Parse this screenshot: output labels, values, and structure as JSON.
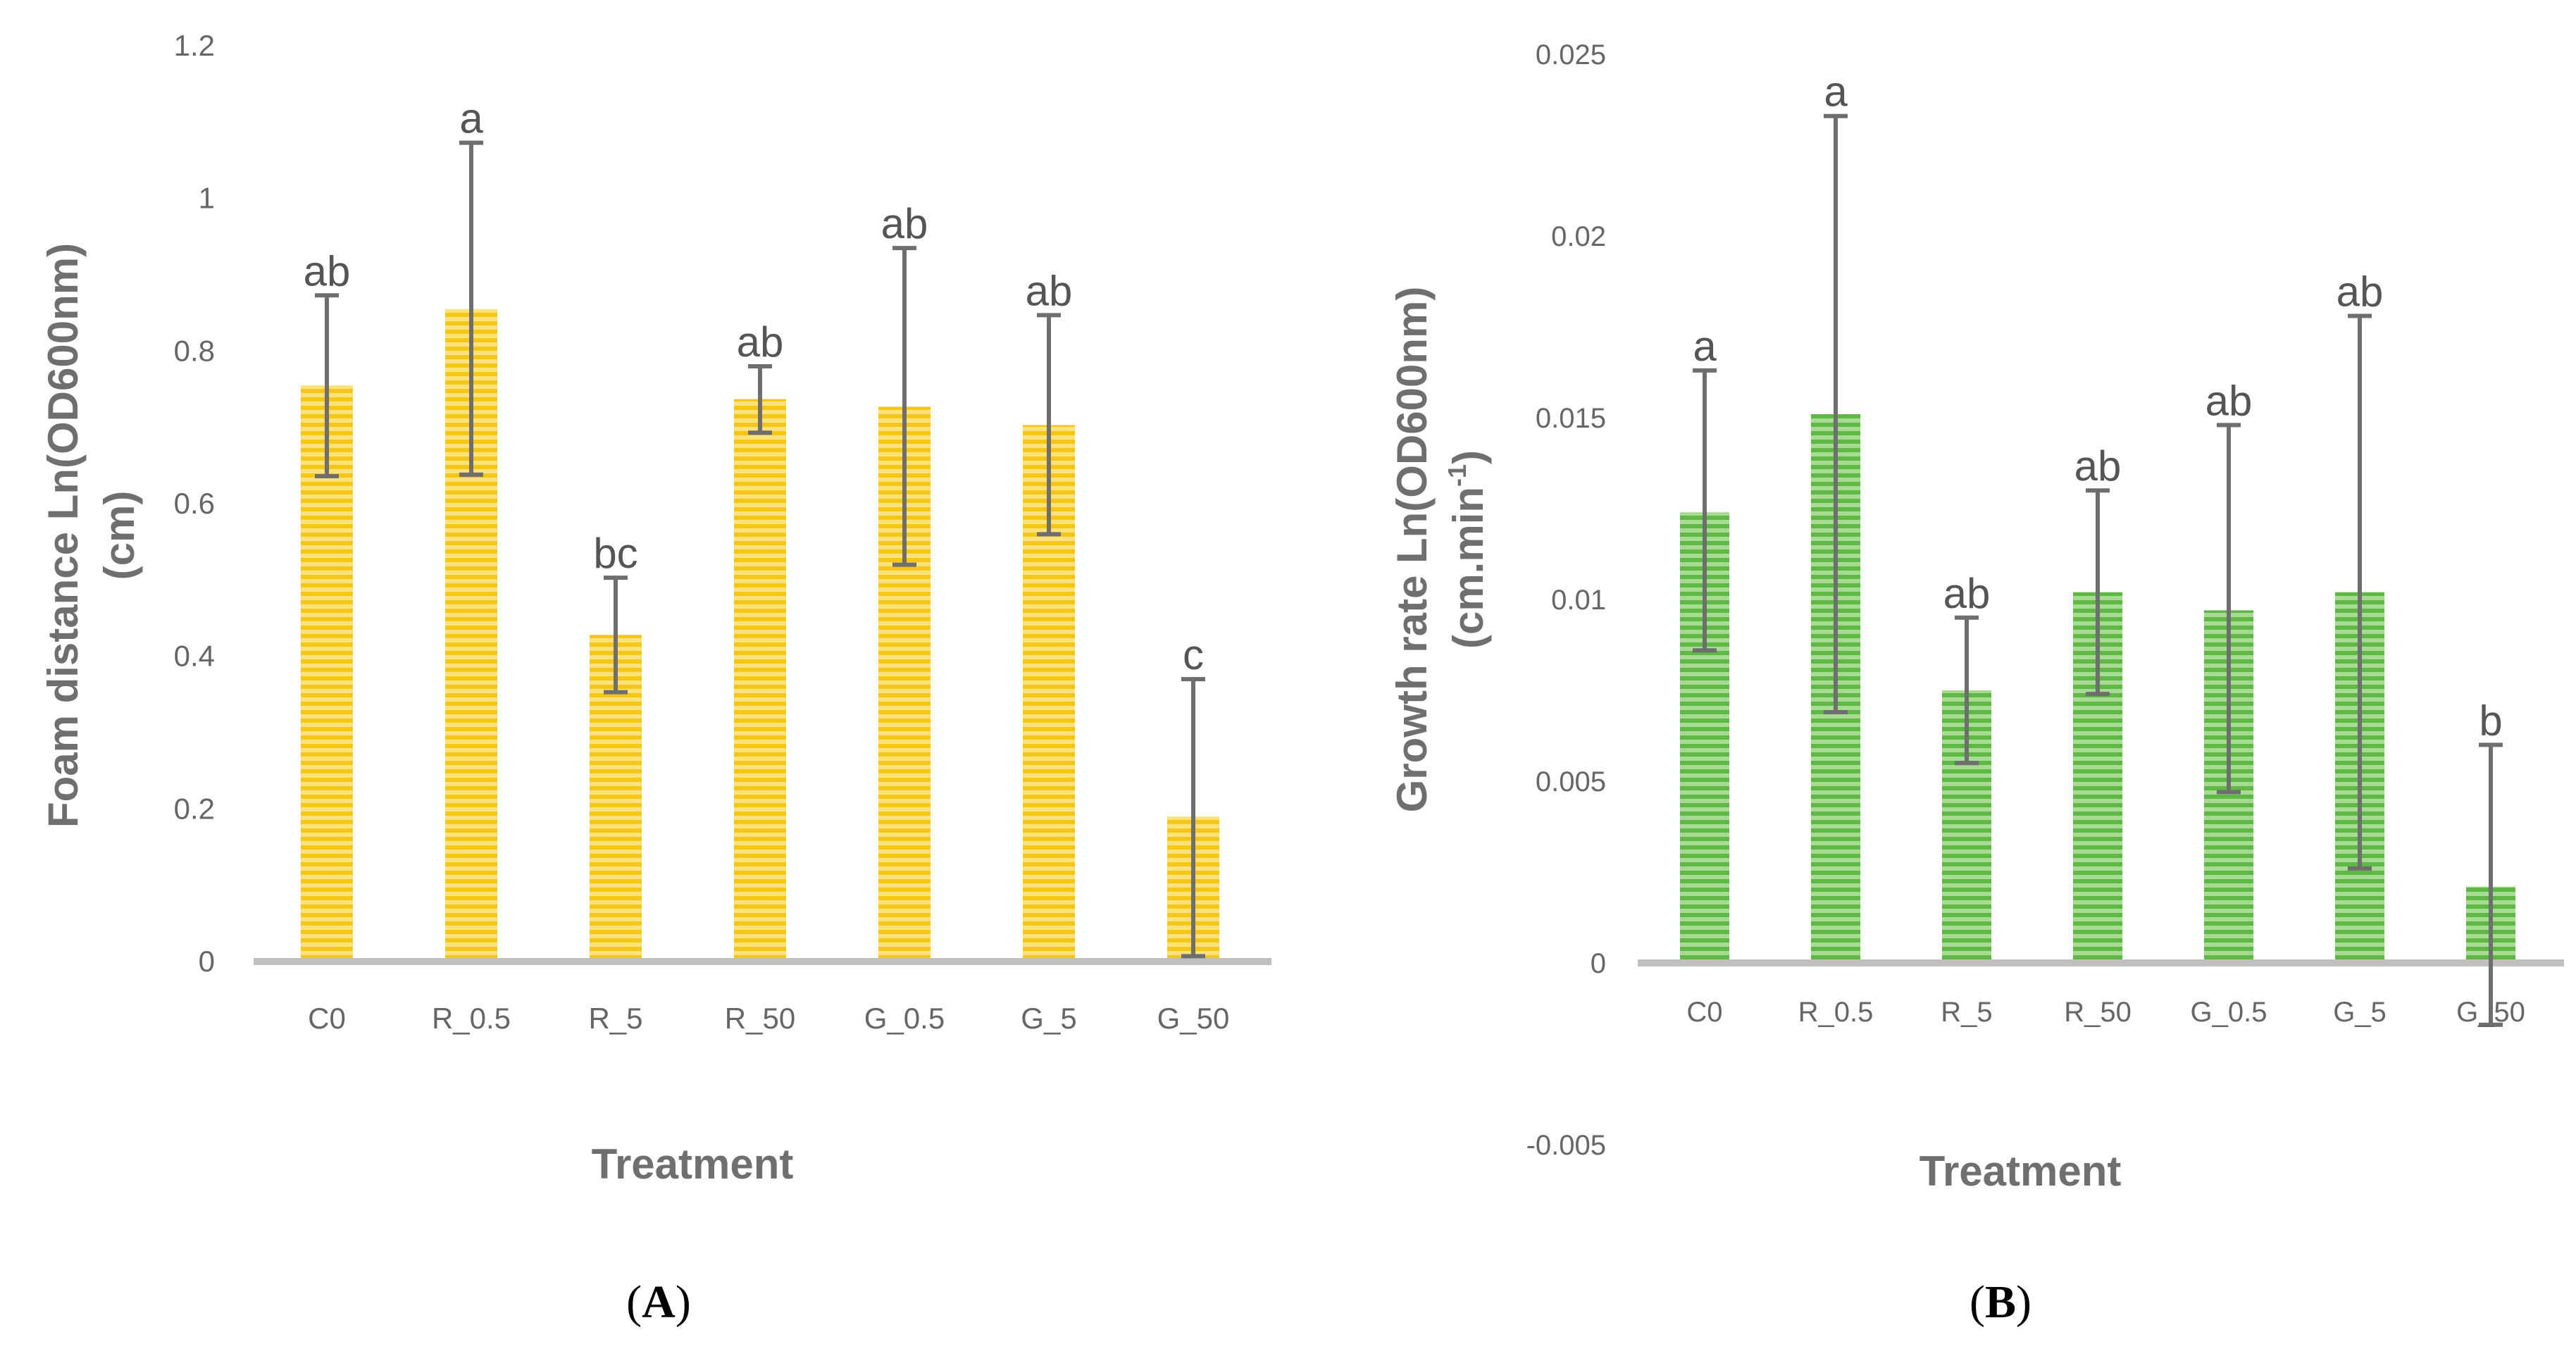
{
  "chart_data": [
    {
      "panel": "A",
      "panel_label": {
        "open": "(",
        "letter": "A",
        "close": ")"
      },
      "type": "bar",
      "ylabel": "Foam distance Ln(OD600nm)",
      "ylabel_line2": "(cm)",
      "xlabel": "Treatment",
      "ylim": [
        0,
        1.2
      ],
      "yticks": [
        0,
        0.2,
        0.4,
        0.6,
        0.8,
        1,
        1.2
      ],
      "categories": [
        "C0",
        "R_0.5",
        "R_5",
        "R_50",
        "G_0.5",
        "G_5",
        "G_50"
      ],
      "values": [
        0.755,
        0.855,
        0.428,
        0.737,
        0.727,
        0.703,
        0.19
      ],
      "error_low": [
        0.636,
        0.638,
        0.353,
        0.693,
        0.52,
        0.56,
        0.007
      ],
      "error_high": [
        0.873,
        1.073,
        0.503,
        0.78,
        0.935,
        0.847,
        0.37
      ],
      "significance_labels": [
        "ab",
        "a",
        "bc",
        "ab",
        "ab",
        "ab",
        "c"
      ],
      "bar_color": "#F5C518",
      "bar_stripe_color": "#FBE27A"
    },
    {
      "panel": "B",
      "panel_label": {
        "open": "(",
        "letter": "B",
        "close": ")"
      },
      "type": "bar",
      "ylabel": "Growth rate Ln(OD600nm)",
      "ylabel_line2_base": "(cm.min",
      "ylabel_line2_sup": "-1",
      "ylabel_line2_end": ")",
      "xlabel": "Treatment",
      "ylim": [
        -0.005,
        0.025
      ],
      "yticks": [
        -0.005,
        0,
        0.005,
        0.01,
        0.015,
        0.02,
        0.025
      ],
      "categories": [
        "C0",
        "R_0.5",
        "R_5",
        "R_50",
        "G_0.5",
        "G_5",
        "G_50"
      ],
      "values": [
        0.0124,
        0.0151,
        0.0075,
        0.0102,
        0.0097,
        0.0102,
        0.0021
      ],
      "error_low": [
        0.0086,
        0.0069,
        0.0055,
        0.0074,
        0.0047,
        0.0026,
        -0.0017
      ],
      "error_high": [
        0.0163,
        0.0233,
        0.0095,
        0.013,
        0.0148,
        0.0178,
        0.006
      ],
      "significance_labels": [
        "a",
        "a",
        "ab",
        "ab",
        "ab",
        "ab",
        "b"
      ],
      "bar_color": "#5DB845",
      "bar_stripe_color": "#A8DB94"
    }
  ],
  "colors": {
    "axis_line": "#BFBFBF",
    "error_bar": "#6E6E6E",
    "text": "#666666"
  }
}
